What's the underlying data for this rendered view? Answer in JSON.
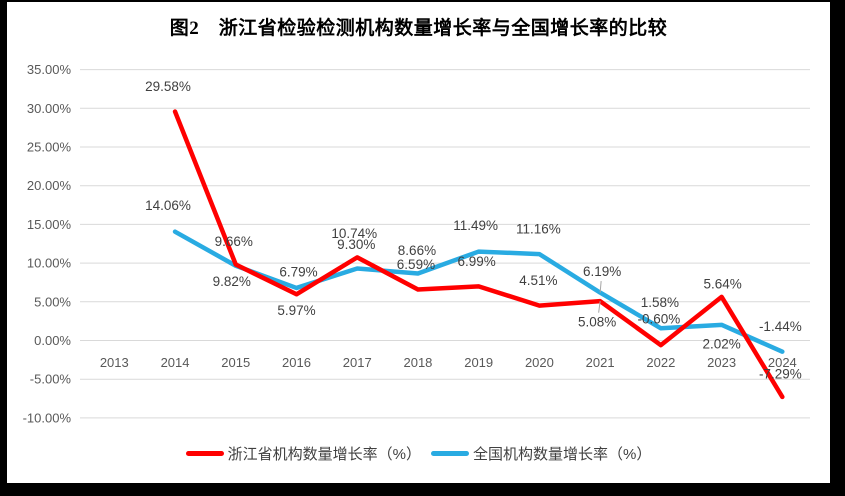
{
  "title": "图2　浙江省检验检测机构数量增长率与全国增长率的比较",
  "chart_data": {
    "type": "line",
    "title": "图2　浙江省检验检测机构数量增长率与全国增长率的比较",
    "categories": [
      "2013",
      "2014",
      "2015",
      "2016",
      "2017",
      "2018",
      "2019",
      "2020",
      "2021",
      "2022",
      "2023",
      "2024"
    ],
    "series": [
      {
        "name": "浙江省机构数量增长率（%）",
        "color": "#FF0000",
        "values": [
          null,
          29.58,
          9.82,
          5.97,
          10.74,
          6.59,
          6.99,
          4.51,
          5.08,
          -0.6,
          5.64,
          -7.29
        ],
        "point_labels": [
          "",
          "29.58%",
          "9.82%",
          "5.97%",
          "10.74%",
          "6.59%",
          "6.99%",
          "4.51%",
          "5.08%",
          "-0.60%",
          "5.64%",
          "-7.29%"
        ],
        "label_offsets": [
          [
            0,
            0
          ],
          [
            -7,
            -25
          ],
          [
            -4,
            17
          ],
          [
            0,
            16
          ],
          [
            -3,
            -24
          ],
          [
            -2,
            -25
          ],
          [
            -2,
            -25
          ],
          [
            -1,
            -25
          ],
          [
            -3,
            21
          ],
          [
            -2,
            -26
          ],
          [
            1,
            -13
          ],
          [
            -2,
            -23
          ]
        ],
        "leader_indices": [
          8
        ]
      },
      {
        "name": "全国机构数量增长率（%）",
        "color": "#29ABE2",
        "values": [
          null,
          14.06,
          9.66,
          6.79,
          9.3,
          8.66,
          11.49,
          11.16,
          6.19,
          1.58,
          2.02,
          -1.44
        ],
        "point_labels": [
          "",
          "14.06%",
          "9.66%",
          "6.79%",
          "9.30%",
          "8.66%",
          "11.49%",
          "11.16%",
          "6.19%",
          "1.58%",
          "2.02%",
          "-1.44%"
        ],
        "label_offsets": [
          [
            0,
            0
          ],
          [
            -7,
            -26
          ],
          [
            -2,
            -24
          ],
          [
            2,
            -16
          ],
          [
            -1,
            -24
          ],
          [
            -1,
            -23
          ],
          [
            -3,
            -26
          ],
          [
            -1,
            -25
          ],
          [
            2,
            -21
          ],
          [
            -1,
            -26
          ],
          [
            0,
            19
          ],
          [
            -2,
            -25
          ]
        ],
        "leader_indices": [
          8
        ]
      }
    ],
    "xlabel": "",
    "ylabel": "",
    "ylim": [
      -10,
      35
    ],
    "ytick_step": 5,
    "ytick_labels": [
      "35.00%",
      "30.00%",
      "25.00%",
      "20.00%",
      "15.00%",
      "10.00%",
      "5.00%",
      "0.00%",
      "-5.00%",
      "-10.00%"
    ],
    "grid": true,
    "legend_position": "bottom",
    "colors": {
      "grid": "#D9D9D9",
      "tick": "#595959",
      "data_label": "#404040",
      "leader": "#A6A6A6",
      "background": "#FFFFFF",
      "frame": "#000000"
    }
  }
}
